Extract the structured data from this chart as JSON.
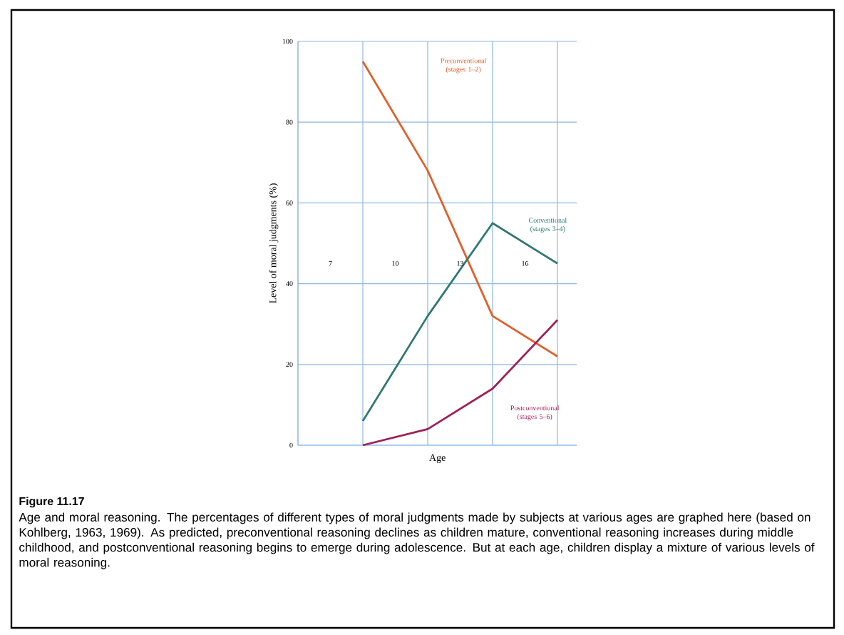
{
  "chart_data": {
    "type": "line",
    "title": "Figure 11.17",
    "xlabel": "Age",
    "ylabel": "Level of moral judgments (%)",
    "categories": [
      null,
      null,
      null,
      null
    ],
    "series": [
      {
        "name": "Preconventional (stages 1–2)",
        "color": "#e0602a",
        "values": [
          95,
          68,
          32,
          22
        ]
      },
      {
        "name": "Conventional (stages 3–4)",
        "color": "#2f7a72",
        "values": [
          6,
          32,
          55,
          45
        ]
      },
      {
        "name": "Postconventional (stages 5–6)",
        "color": "#a0205a",
        "values": [
          0,
          4,
          14,
          31
        ]
      }
    ],
    "ylim": [
      0,
      100
    ],
    "yticks": [
      0,
      20,
      40,
      60,
      80,
      100
    ],
    "grid": true,
    "legend": false,
    "marker": "none",
    "line_style": "solid",
    "annotations": [
      "7",
      "10",
      "13",
      "16",
      "Age and moral reasoning. The percentages of different types of moral judgments made by subjects at various ages are graphed here (based on Kohlberg, 1963, 1969). As predicted, preconventional reasoning declines as children mature, conventional reasoning increases during middle childhood, and postconventional reasoning begins to emerge during adolescence. But at each age, children display a mixture of various levels of moral reasoning."
    ]
  }
}
